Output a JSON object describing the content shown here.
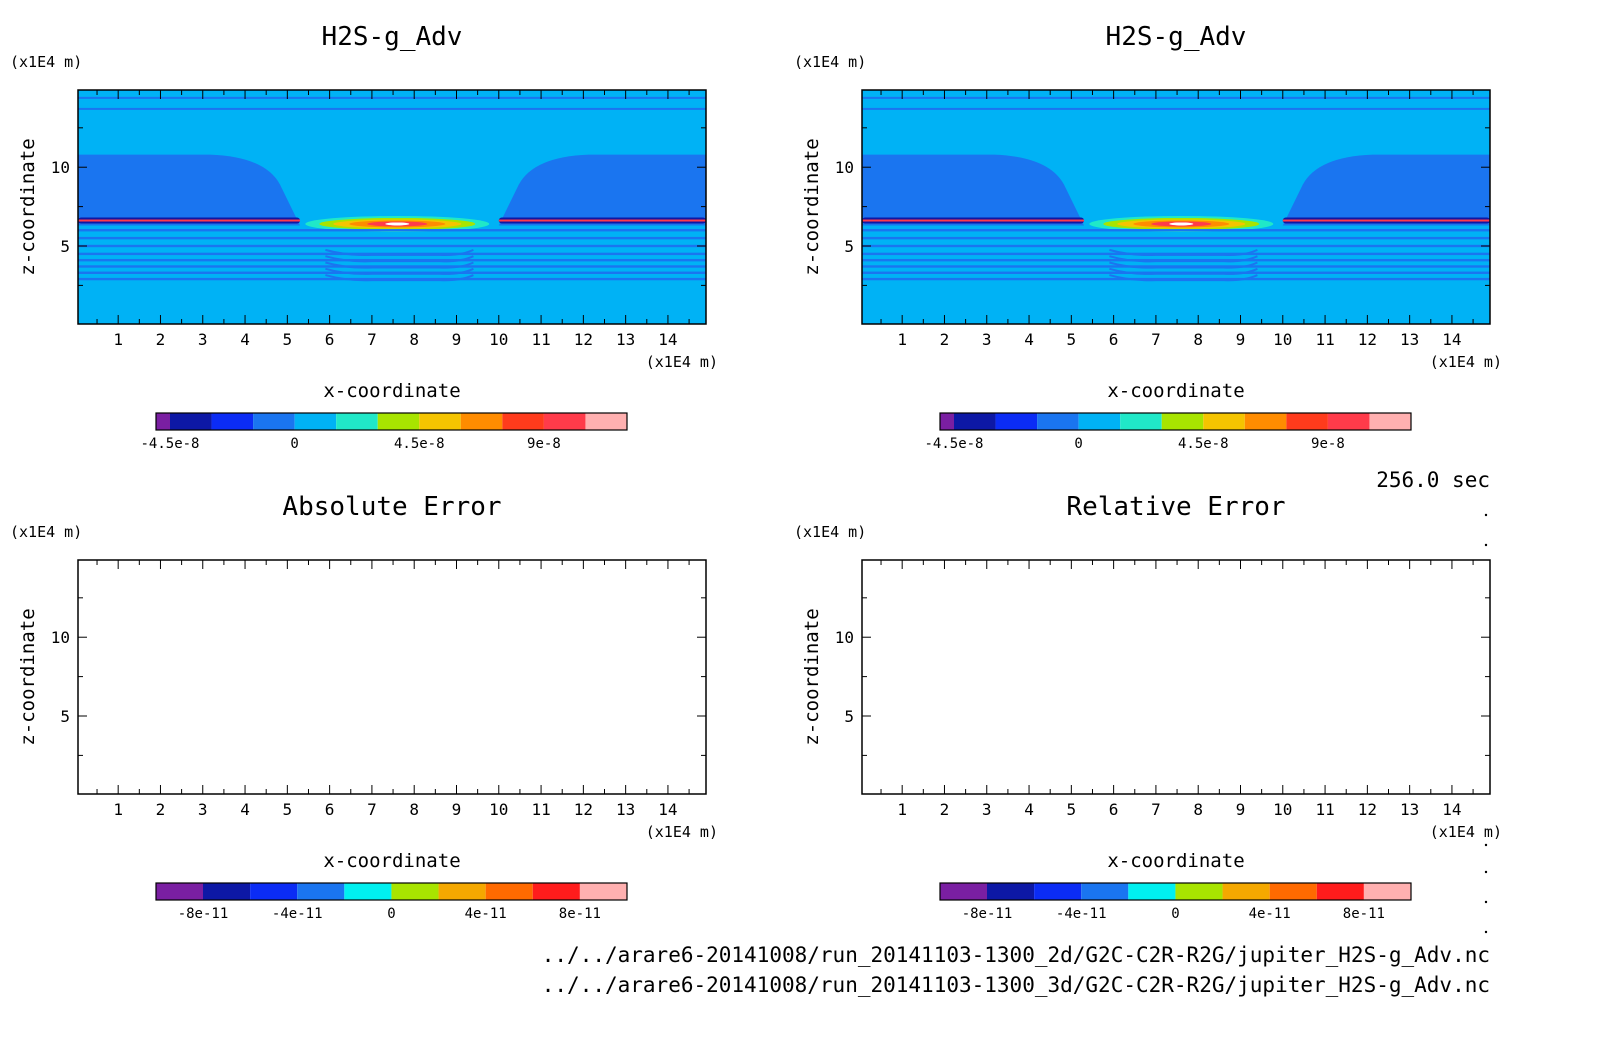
{
  "chart_data": [
    {
      "type": "heatmap",
      "title": "H2S-g_Adv",
      "xlabel": "x-coordinate",
      "ylabel": "z-coordinate",
      "x_unit": "(x1E4 m)",
      "y_unit": "(x1E4 m)",
      "xlim": [
        0.05,
        14.9
      ],
      "ylim": [
        0.05,
        14.9
      ],
      "x_ticks": [
        1,
        2,
        3,
        4,
        5,
        6,
        7,
        8,
        9,
        10,
        11,
        12,
        13,
        14
      ],
      "y_ticks": [
        5,
        10
      ],
      "colorbar": {
        "colors": [
          "#7a1fa2",
          "#0d18a5",
          "#0b2cf5",
          "#1a75f0",
          "#00b2f5",
          "#20e8c8",
          "#a8e400",
          "#f5c400",
          "#ff8c00",
          "#ff3b1c",
          "#ff3b4a",
          "#ffb0b0"
        ],
        "tick_labels": [
          "-4.5e-8",
          "0",
          "4.5e-8",
          "9e-8"
        ],
        "tick_values": [
          -4.5e-08,
          0,
          4.5e-08,
          9e-08
        ],
        "range": [
          -6e-08,
          1.35e-07
        ]
      },
      "features": {
        "background_level": 0,
        "negative_lobes": [
          {
            "x": [
              0.05,
              5.3
            ],
            "z": [
              6.3,
              10.8
            ]
          },
          {
            "x": [
              10.0,
              14.9
            ],
            "z": [
              6.3,
              10.8
            ]
          }
        ],
        "positive_peak": {
          "x": 7.6,
          "z": 6.4,
          "max": 1.2e-07
        },
        "lower_stripes_z": [
          2.9,
          3.3,
          3.7,
          4.1,
          4.5,
          5.0,
          5.5,
          6.0
        ]
      }
    },
    {
      "type": "heatmap",
      "title": "H2S-g_Adv",
      "xlabel": "x-coordinate",
      "ylabel": "z-coordinate",
      "x_unit": "(x1E4 m)",
      "y_unit": "(x1E4 m)",
      "xlim": [
        0.05,
        14.9
      ],
      "ylim": [
        0.05,
        14.9
      ],
      "x_ticks": [
        1,
        2,
        3,
        4,
        5,
        6,
        7,
        8,
        9,
        10,
        11,
        12,
        13,
        14
      ],
      "y_ticks": [
        5,
        10
      ],
      "colorbar": {
        "colors": [
          "#7a1fa2",
          "#0d18a5",
          "#0b2cf5",
          "#1a75f0",
          "#00b2f5",
          "#20e8c8",
          "#a8e400",
          "#f5c400",
          "#ff8c00",
          "#ff3b1c",
          "#ff3b4a",
          "#ffb0b0"
        ],
        "tick_labels": [
          "-4.5e-8",
          "0",
          "4.5e-8",
          "9e-8"
        ],
        "tick_values": [
          -4.5e-08,
          0,
          4.5e-08,
          9e-08
        ],
        "range": [
          -6e-08,
          1.35e-07
        ]
      },
      "features": {
        "background_level": 0,
        "negative_lobes": [
          {
            "x": [
              0.05,
              5.3
            ],
            "z": [
              6.3,
              10.8
            ]
          },
          {
            "x": [
              10.0,
              14.9
            ],
            "z": [
              6.3,
              10.8
            ]
          }
        ],
        "positive_peak": {
          "x": 7.6,
          "z": 6.4,
          "max": 1.2e-07
        },
        "lower_stripes_z": [
          2.9,
          3.3,
          3.7,
          4.1,
          4.5,
          5.0,
          5.5,
          6.0
        ]
      }
    },
    {
      "type": "heatmap",
      "title": "Absolute Error",
      "xlabel": "x-coordinate",
      "ylabel": "z-coordinate",
      "x_unit": "(x1E4 m)",
      "y_unit": "(x1E4 m)",
      "xlim": [
        0.05,
        14.9
      ],
      "ylim": [
        0.05,
        14.9
      ],
      "x_ticks": [
        1,
        2,
        3,
        4,
        5,
        6,
        7,
        8,
        9,
        10,
        11,
        12,
        13,
        14
      ],
      "y_ticks": [
        5,
        10
      ],
      "colorbar": {
        "colors": [
          "#7a1fa2",
          "#0d18a5",
          "#0b2cf5",
          "#1a75f0",
          "#00f0f0",
          "#a8e400",
          "#f5a800",
          "#ff6a00",
          "#ff1c1c",
          "#ffb0b0"
        ],
        "tick_labels": [
          "-8e-11",
          "-4e-11",
          "0",
          "4e-11",
          "8e-11"
        ],
        "tick_values": [
          -8e-11,
          -4e-11,
          0,
          4e-11,
          8e-11
        ],
        "range": [
          -1e-10,
          1e-10
        ]
      },
      "features": {
        "field": "empty"
      }
    },
    {
      "type": "heatmap",
      "title": "Relative Error",
      "xlabel": "x-coordinate",
      "ylabel": "z-coordinate",
      "x_unit": "(x1E4 m)",
      "y_unit": "(x1E4 m)",
      "xlim": [
        0.05,
        14.9
      ],
      "ylim": [
        0.05,
        14.9
      ],
      "x_ticks": [
        1,
        2,
        3,
        4,
        5,
        6,
        7,
        8,
        9,
        10,
        11,
        12,
        13,
        14
      ],
      "y_ticks": [
        5,
        10
      ],
      "colorbar": {
        "colors": [
          "#7a1fa2",
          "#0d18a5",
          "#0b2cf5",
          "#1a75f0",
          "#00f0f0",
          "#a8e400",
          "#f5a800",
          "#ff6a00",
          "#ff1c1c",
          "#ffb0b0"
        ],
        "tick_labels": [
          "-8e-11",
          "-4e-11",
          "0",
          "4e-11",
          "8e-11"
        ],
        "tick_values": [
          -8e-11,
          -4e-11,
          0,
          4e-11,
          8e-11
        ],
        "range": [
          -1e-10,
          1e-10
        ]
      },
      "features": {
        "field": "empty"
      }
    }
  ],
  "time_label": "256.0 sec",
  "file_paths": [
    "../../arare6-20141008/run_20141103-1300_2d/G2C-C2R-R2G/jupiter_H2S-g_Adv.nc",
    "../../arare6-20141008/run_20141103-1300_3d/G2C-C2R-R2G/jupiter_H2S-g_Adv.nc"
  ]
}
